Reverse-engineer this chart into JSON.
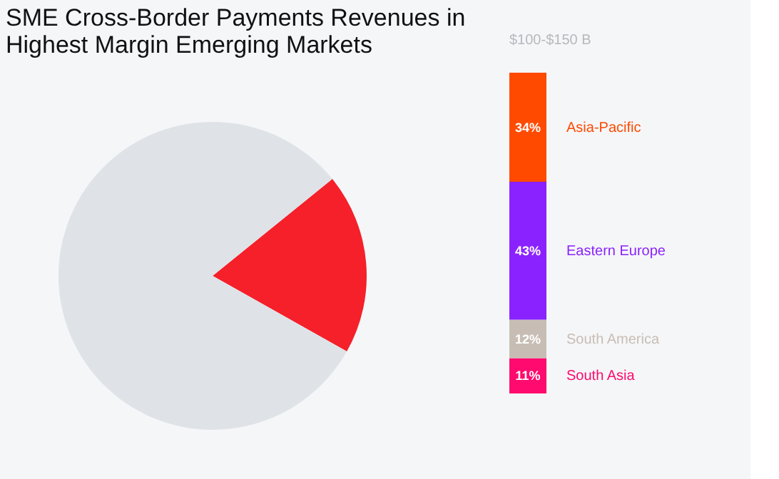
{
  "chart_data": [
    {
      "type": "pie",
      "title": "SME Cross-Border Payments Revenues in Highest Margin Emerging Markets",
      "categories": [
        null,
        null
      ],
      "values": [
        19,
        81
      ],
      "colors": [
        "#f5202a",
        "#dfe3e7"
      ],
      "legend": false
    },
    {
      "type": "bar",
      "title": "$100-$150 B",
      "categories": [
        null
      ],
      "stacked": true,
      "legend": false,
      "tick_labels": false,
      "series": [
        {
          "name": "South Asia",
          "color": "#ff0a6e",
          "values": [
            11
          ],
          "value_labels": [
            "11%"
          ]
        },
        {
          "name": "South America",
          "color": "#c8bdb4",
          "values": [
            12
          ],
          "value_labels": [
            "12%"
          ]
        },
        {
          "name": "Eastern Europe",
          "color": "#8a22ff",
          "values": [
            43
          ],
          "value_labels": [
            "43%"
          ]
        },
        {
          "name": "Asia-Pacific",
          "color": "#ff4a00",
          "values": [
            34
          ],
          "value_labels": [
            "34%"
          ]
        }
      ]
    }
  ]
}
